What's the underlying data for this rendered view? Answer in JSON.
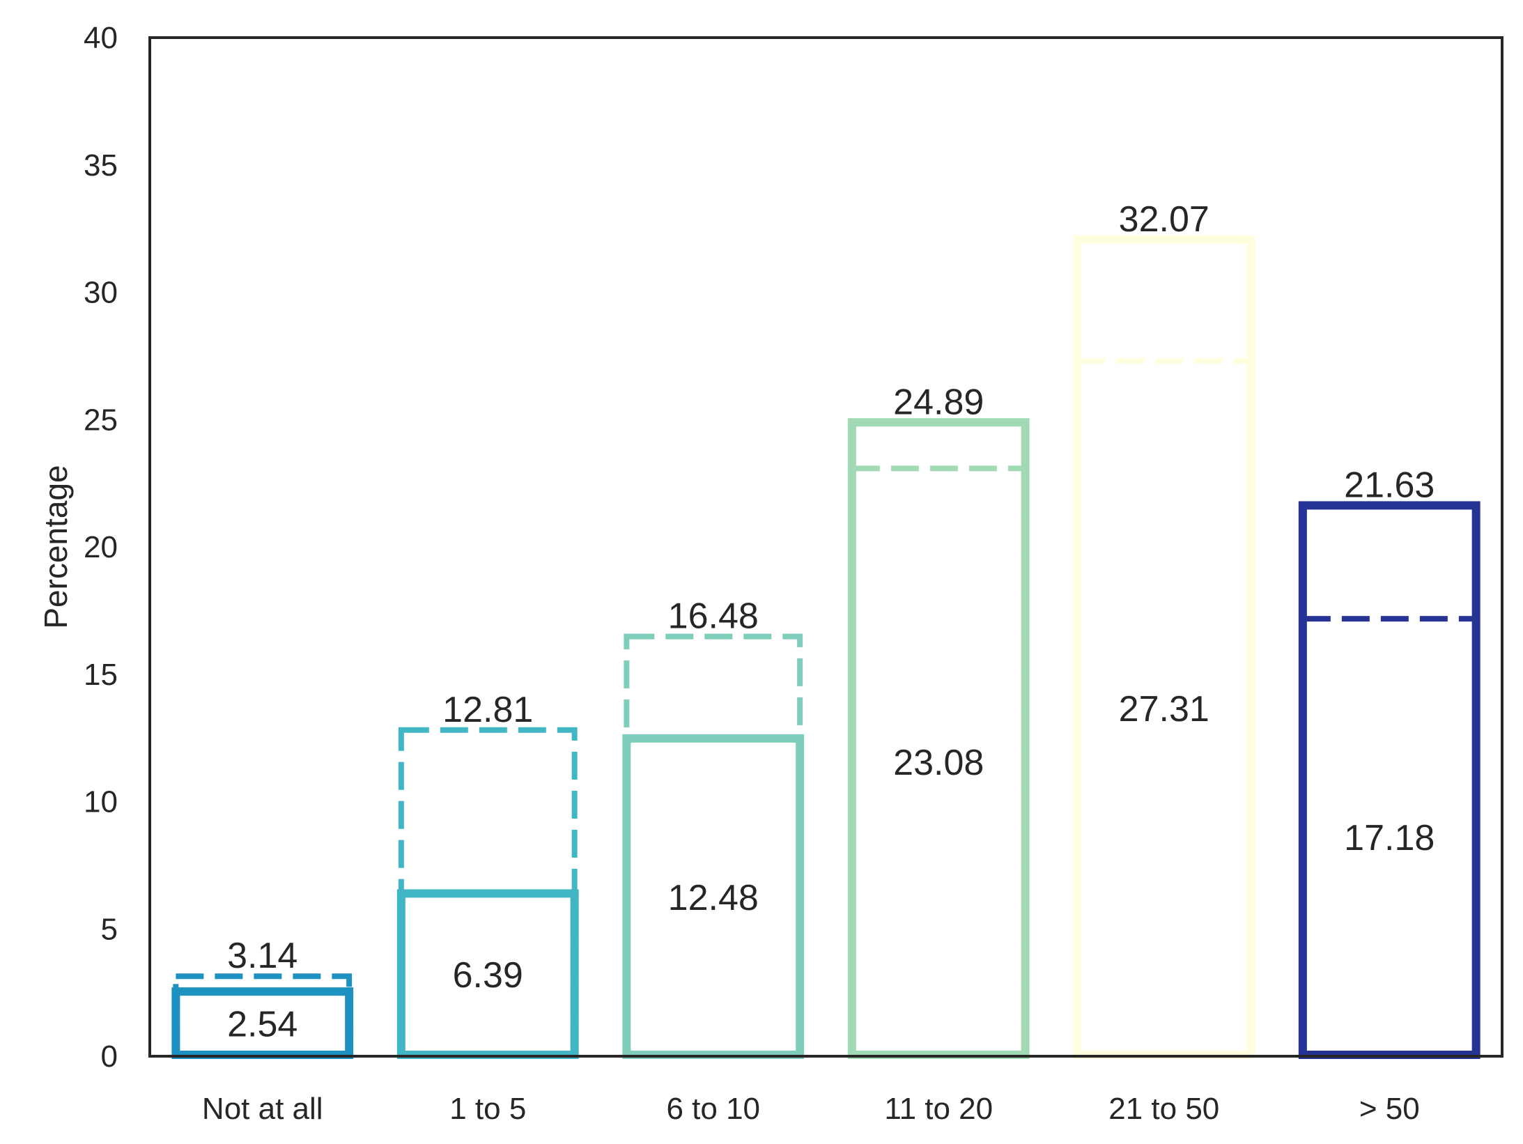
{
  "chart_data": {
    "type": "bar",
    "title": "",
    "xlabel": "",
    "ylabel": "Percentage",
    "ylim": [
      0,
      40
    ],
    "yticks": [
      0,
      5,
      10,
      15,
      20,
      25,
      30,
      35,
      40
    ],
    "grid": false,
    "legend": "none",
    "categories": [
      "Not at all",
      "1 to 5",
      "6 to 10",
      "11 to 20",
      "21 to 50",
      "> 50"
    ],
    "colors": [
      "#1d91c0",
      "#41b6c4",
      "#7fcdbb",
      "#a1dab4",
      "#ffffe0",
      "#253494"
    ],
    "series": [
      {
        "style": "solid",
        "values": [
          2.54,
          6.39,
          12.48,
          24.89,
          32.07,
          21.63
        ]
      },
      {
        "style": "dashed",
        "values": [
          3.14,
          12.81,
          16.48,
          23.08,
          27.31,
          17.18
        ]
      }
    ]
  }
}
